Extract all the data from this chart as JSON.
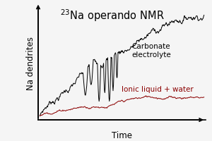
{
  "title": "$^{23}$Na operando NMR",
  "ylabel": "Na dendrites",
  "xlabel": "Time",
  "background_color": "#f5f5f5",
  "black_line_color": "#000000",
  "red_line_color": "#8b0000",
  "carbonate_label": "Carbonate\nelectrolyte",
  "ionic_label": "Ionic liquid + water",
  "title_fontsize": 10.5,
  "label_fontsize": 8.5,
  "annotation_fontsize": 7.5,
  "n_points": 400
}
